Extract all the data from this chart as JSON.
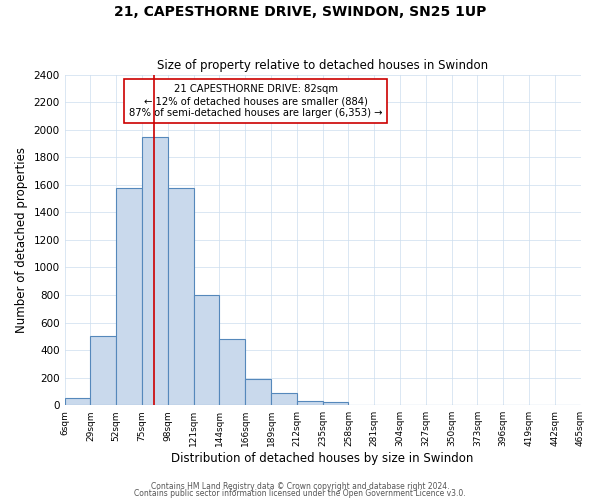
{
  "title": "21, CAPESTHORNE DRIVE, SWINDON, SN25 1UP",
  "subtitle": "Size of property relative to detached houses in Swindon",
  "xlabel": "Distribution of detached houses by size in Swindon",
  "ylabel": "Number of detached properties",
  "bin_labels": [
    "6sqm",
    "29sqm",
    "52sqm",
    "75sqm",
    "98sqm",
    "121sqm",
    "144sqm",
    "166sqm",
    "189sqm",
    "212sqm",
    "235sqm",
    "258sqm",
    "281sqm",
    "304sqm",
    "327sqm",
    "350sqm",
    "373sqm",
    "396sqm",
    "419sqm",
    "442sqm",
    "465sqm"
  ],
  "bar_values": [
    50,
    500,
    1580,
    1950,
    1580,
    800,
    480,
    190,
    90,
    30,
    20,
    0,
    0,
    0,
    0,
    0,
    0,
    0,
    0,
    0
  ],
  "bar_color": "#c9d9ec",
  "bar_edge_color": "#5588bb",
  "vline_x_index": 3.45,
  "vline_color": "#cc0000",
  "annotation_text": "21 CAPESTHORNE DRIVE: 82sqm\n← 12% of detached houses are smaller (884)\n87% of semi-detached houses are larger (6,353) →",
  "annotation_box_color": "#ffffff",
  "annotation_box_edge_color": "#cc0000",
  "ylim": [
    0,
    2400
  ],
  "yticks": [
    0,
    200,
    400,
    600,
    800,
    1000,
    1200,
    1400,
    1600,
    1800,
    2000,
    2200,
    2400
  ],
  "footnote1": "Contains HM Land Registry data © Crown copyright and database right 2024.",
  "footnote2": "Contains public sector information licensed under the Open Government Licence v3.0.",
  "background_color": "#ffffff",
  "grid_color": "#ccddee"
}
